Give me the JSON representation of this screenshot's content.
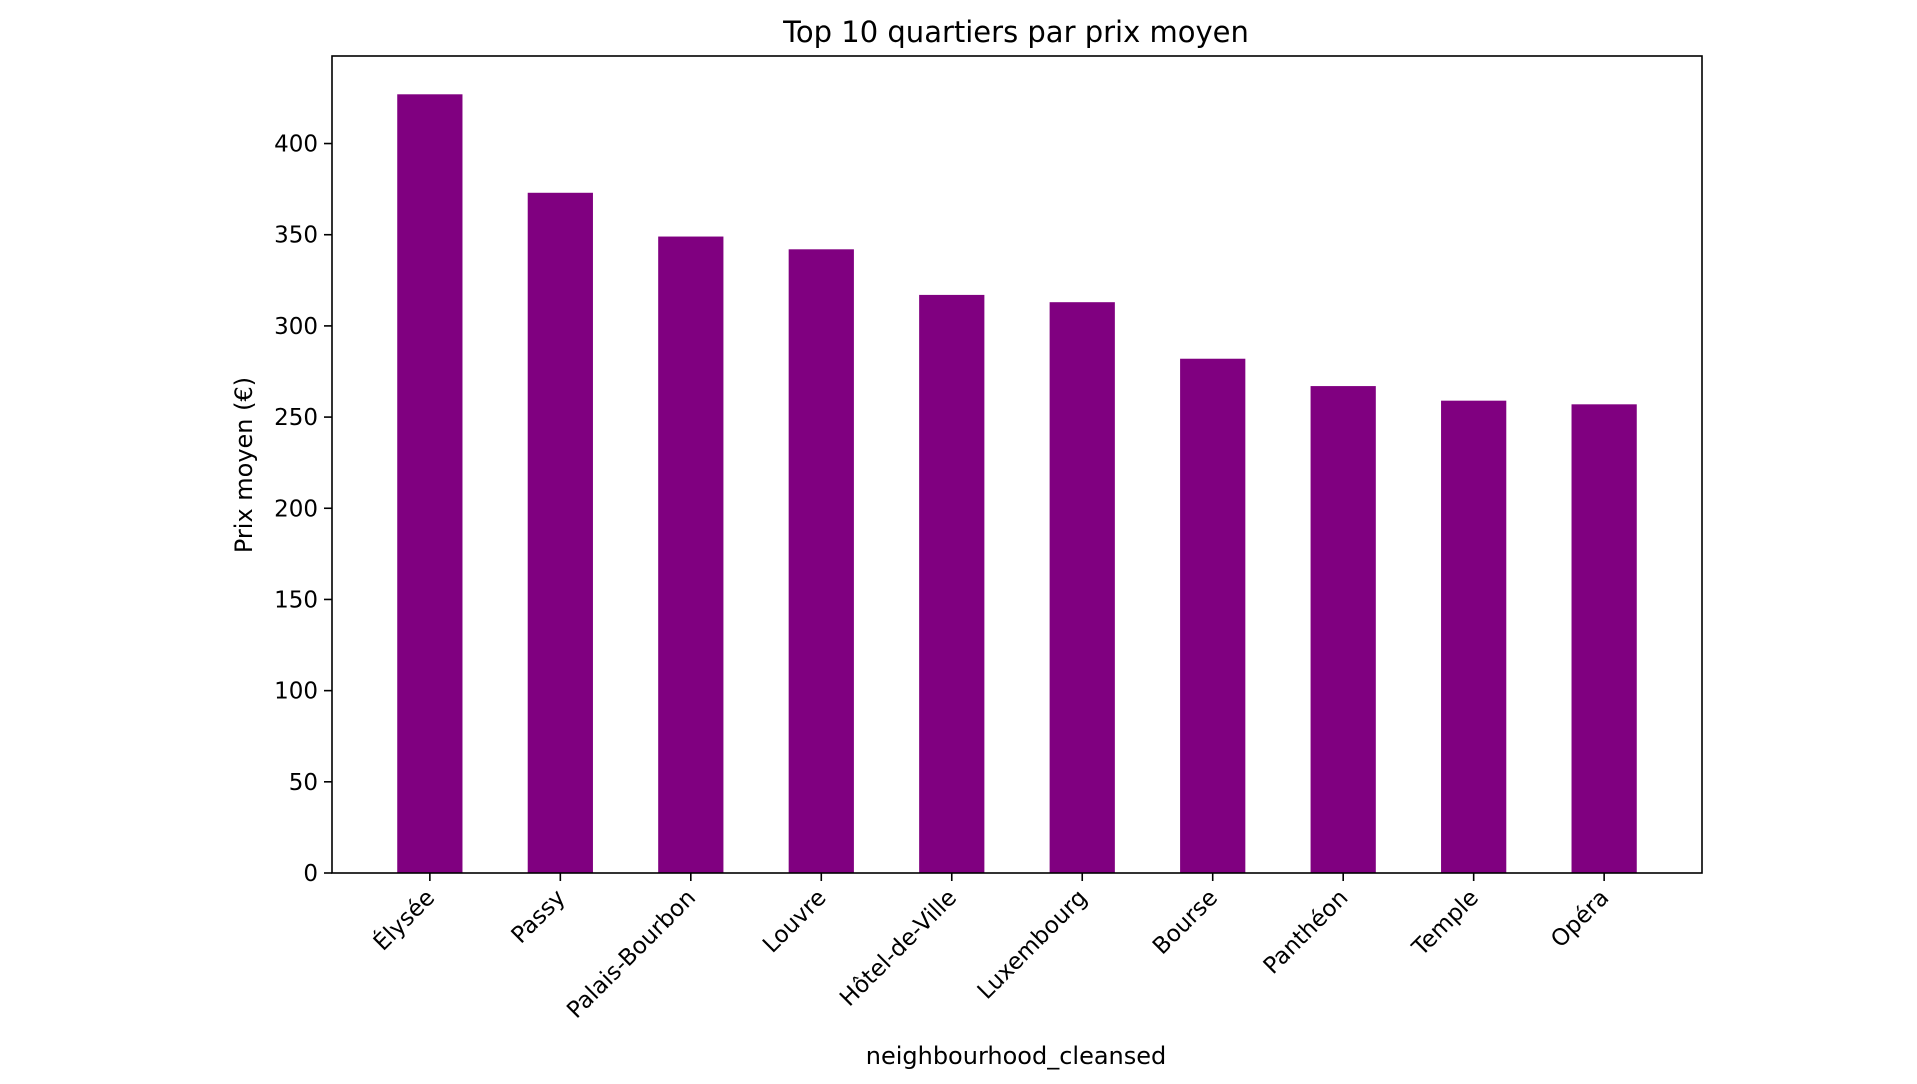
{
  "chart_data": {
    "type": "bar",
    "title": "Top 10 quartiers par prix moyen",
    "xlabel": "neighbourhood_cleansed",
    "ylabel": "Prix moyen (€)",
    "categories": [
      "Élysée",
      "Passy",
      "Palais-Bourbon",
      "Louvre",
      "Hôtel-de-Ville",
      "Luxembourg",
      "Bourse",
      "Panthéon",
      "Temple",
      "Opéra"
    ],
    "values": [
      427,
      373,
      349,
      342,
      317,
      313,
      282,
      267,
      259,
      257
    ],
    "ylim": [
      0,
      448
    ],
    "yticks": [
      0,
      50,
      100,
      150,
      200,
      250,
      300,
      350,
      400
    ],
    "bar_color": "#800080",
    "grid": false,
    "legend": "none"
  }
}
